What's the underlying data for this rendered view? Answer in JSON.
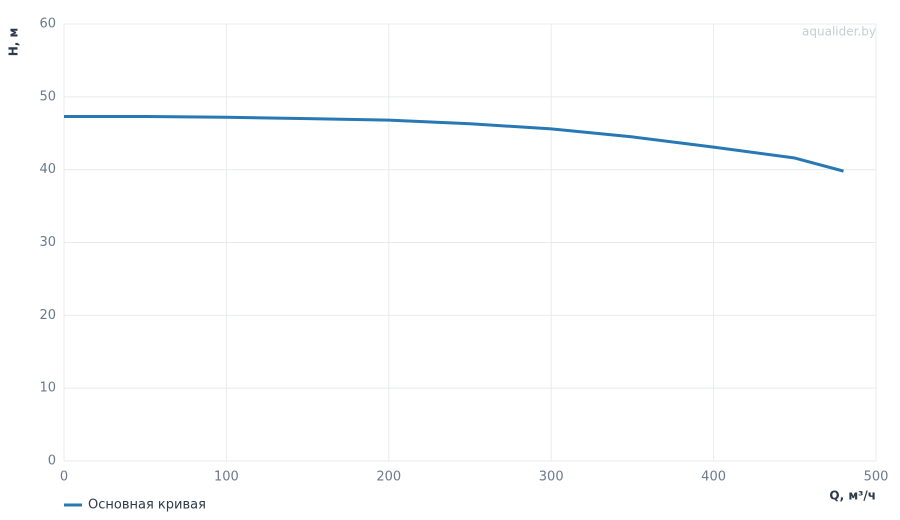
{
  "chart_data": {
    "type": "line",
    "y_label": "H, м",
    "x_label": "Q, м³/ч",
    "watermark": "aqualider.by",
    "x": [
      0,
      50,
      100,
      150,
      200,
      250,
      300,
      350,
      400,
      450,
      480
    ],
    "series": [
      {
        "name": "Основная кривая",
        "color": "#2878b4",
        "values": [
          47.3,
          47.3,
          47.2,
          47.0,
          46.8,
          46.3,
          45.6,
          44.5,
          43.1,
          41.6,
          39.8
        ]
      }
    ],
    "xlim": [
      0,
      500
    ],
    "xticks": [
      0,
      100,
      200,
      300,
      400,
      500
    ],
    "ylim": [
      0,
      60
    ],
    "yticks": [
      0,
      10,
      20,
      30,
      40,
      50,
      60
    ],
    "grid": true
  }
}
